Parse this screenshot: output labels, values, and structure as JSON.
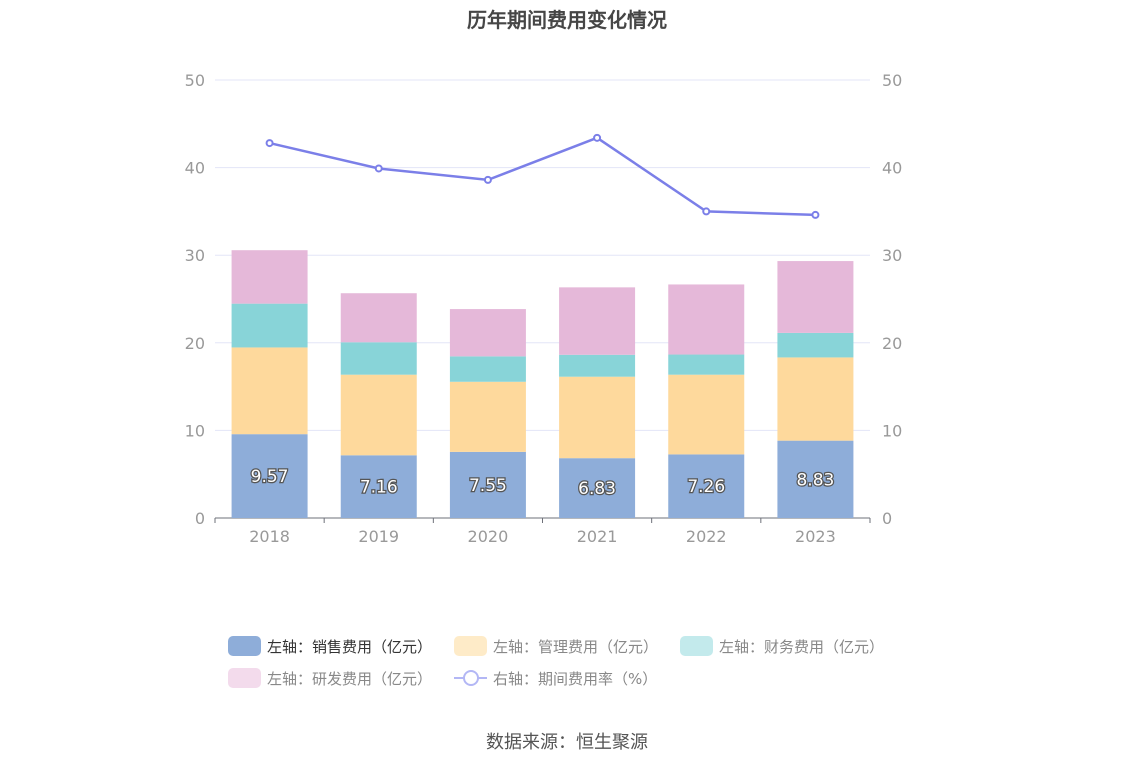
{
  "title": "历年期间费用变化情况",
  "source": "数据来源：恒生聚源",
  "colors": {
    "sales": "#8eadd9",
    "admin": "#fed99c",
    "finance": "#88d4d8",
    "rnd": "#e5b8d9",
    "rate": "#7b7fe8",
    "grid": "#e3e5f7",
    "axis": "#999999"
  },
  "legend": {
    "sales": "左轴：销售费用（亿元）",
    "admin": "左轴：管理费用（亿元）",
    "finance": "左轴：财务费用（亿元）",
    "rnd": "左轴：研发费用（亿元）",
    "rate": "右轴：期间费用率（%）"
  },
  "chart_data": {
    "type": "bar",
    "stacked": true,
    "categories": [
      "2018",
      "2019",
      "2020",
      "2021",
      "2022",
      "2023"
    ],
    "y_left": {
      "ticks": [
        0,
        10,
        20,
        30,
        40,
        50
      ],
      "ylim": [
        0,
        50
      ]
    },
    "y_right": {
      "ticks": [
        0,
        10,
        20,
        30,
        40,
        50
      ],
      "ylim": [
        0,
        50
      ]
    },
    "grid": true,
    "legend_position": "bottom",
    "series": [
      {
        "name": "左轴：销售费用（亿元）",
        "axis": "left",
        "type": "bar",
        "values": [
          9.57,
          7.16,
          7.55,
          6.83,
          7.26,
          8.83
        ],
        "labels": [
          "9.57",
          "7.16",
          "7.55",
          "6.83",
          "7.26",
          "8.83"
        ]
      },
      {
        "name": "左轴：管理费用（亿元）",
        "axis": "left",
        "type": "bar",
        "values": [
          9.9,
          9.2,
          8.0,
          9.3,
          9.1,
          9.5
        ]
      },
      {
        "name": "左轴：财务费用（亿元）",
        "axis": "left",
        "type": "bar",
        "values": [
          5.0,
          3.7,
          2.9,
          2.5,
          2.3,
          2.8
        ]
      },
      {
        "name": "左轴：研发费用（亿元）",
        "axis": "left",
        "type": "bar",
        "values": [
          6.1,
          5.6,
          5.4,
          7.7,
          8.0,
          8.2
        ]
      },
      {
        "name": "右轴：期间费用率（%）",
        "axis": "right",
        "type": "line",
        "values": [
          42.8,
          39.9,
          38.6,
          43.4,
          35.0,
          34.6
        ]
      }
    ]
  }
}
